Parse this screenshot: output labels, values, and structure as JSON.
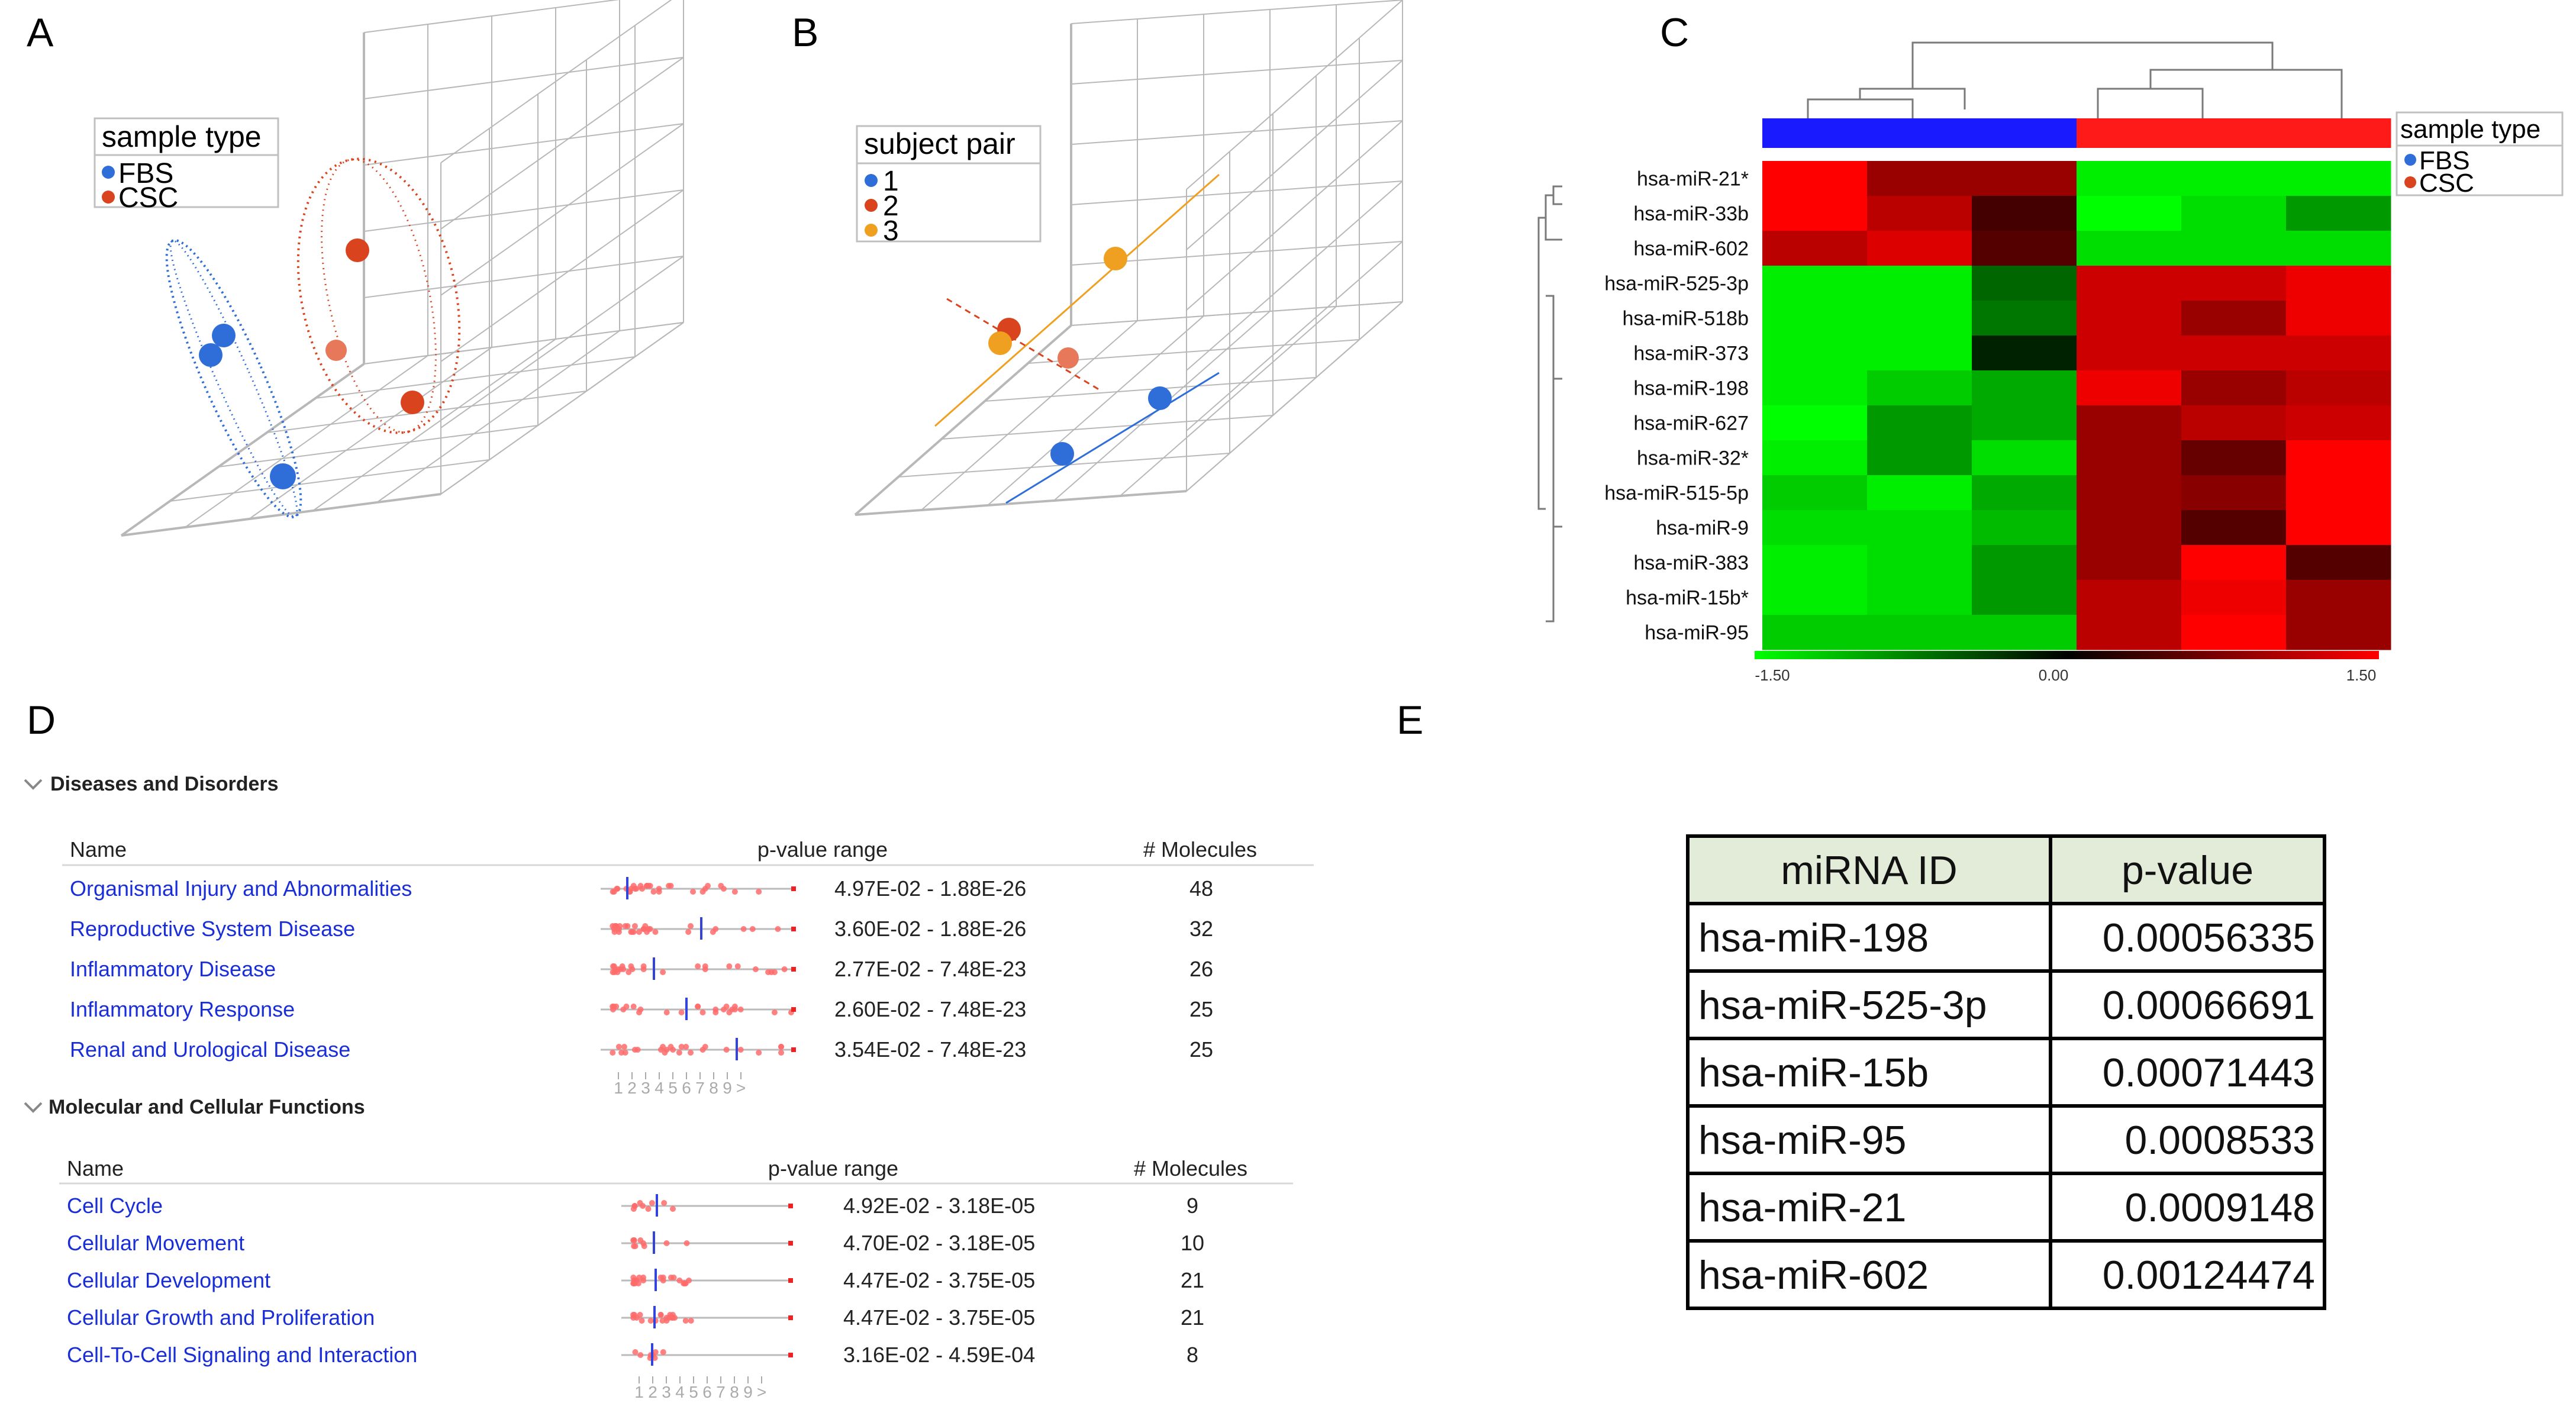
{
  "panel_labels": [
    "A",
    "B",
    "C",
    "D",
    "E"
  ],
  "colors": {
    "fbs": "#2f6ed8",
    "csc": "#d9441e",
    "subject1": "#2f6ed8",
    "subject2": "#d9441e",
    "subject3": "#f0a020",
    "heat_low": "#00ff00",
    "heat_mid": "#000000",
    "heat_high": "#ff0000",
    "link_blue": "#1a2ed8"
  },
  "panelA": {
    "legend_title": "sample type",
    "legend": [
      "FBS",
      "CSC"
    ]
  },
  "panelB": {
    "legend_title": "subject pair",
    "legend": [
      "1",
      "2",
      "3"
    ]
  },
  "panelC": {
    "legend_title": "sample type",
    "legend": [
      "FBS",
      "CSC"
    ],
    "scale_labels": [
      "-1.50",
      "0.00",
      "1.50"
    ]
  },
  "chart_data": [
    {
      "type": "heatmap",
      "rows": [
        "hsa-miR-21*",
        "hsa-miR-33b",
        "hsa-miR-602",
        "hsa-miR-525-3p",
        "hsa-miR-518b",
        "hsa-miR-373",
        "hsa-miR-198",
        "hsa-miR-627",
        "hsa-miR-32*",
        "hsa-miR-515-5p",
        "hsa-miR-9",
        "hsa-miR-383",
        "hsa-miR-15b*",
        "hsa-miR-95"
      ],
      "column_groups": [
        "FBS",
        "FBS",
        "FBS",
        "CSC",
        "CSC",
        "CSC"
      ],
      "values": [
        [
          1.5,
          0.9,
          0.9,
          -1.4,
          -1.4,
          -1.4
        ],
        [
          1.5,
          1.1,
          0.4,
          -1.5,
          -1.3,
          -0.9
        ],
        [
          1.1,
          1.3,
          0.5,
          -1.3,
          -1.3,
          -1.3
        ],
        [
          -1.4,
          -1.4,
          -0.6,
          1.2,
          1.2,
          1.4
        ],
        [
          -1.4,
          -1.4,
          -0.7,
          1.2,
          0.9,
          1.4
        ],
        [
          -1.4,
          -1.4,
          -0.2,
          1.2,
          1.2,
          1.2
        ],
        [
          -1.4,
          -1.2,
          -1.0,
          1.4,
          0.9,
          1.1
        ],
        [
          -1.5,
          -0.9,
          -1.0,
          0.9,
          1.1,
          1.2
        ],
        [
          -1.4,
          -0.9,
          -1.3,
          0.9,
          0.6,
          1.5
        ],
        [
          -1.2,
          -1.4,
          -1.0,
          0.9,
          0.8,
          1.5
        ],
        [
          -1.3,
          -1.3,
          -1.1,
          0.9,
          0.5,
          1.5
        ],
        [
          -1.4,
          -1.3,
          -0.9,
          0.9,
          1.5,
          0.5
        ],
        [
          -1.4,
          -1.3,
          -0.9,
          1.1,
          1.4,
          0.9
        ],
        [
          -1.2,
          -1.2,
          -1.2,
          1.1,
          1.5,
          0.9
        ]
      ],
      "color_scale": [
        -1.5,
        0.0,
        1.5
      ]
    },
    {
      "type": "table",
      "section": "Diseases and Disorders",
      "columns": [
        "Name",
        "p-value range",
        "# Molecules"
      ],
      "rows": [
        [
          "Organismal Injury and Abnormalities",
          "4.97E-02 - 1.88E-26",
          "48"
        ],
        [
          "Reproductive System Disease",
          "3.60E-02 - 1.88E-26",
          "32"
        ],
        [
          "Inflammatory Disease",
          "2.77E-02 - 7.48E-23",
          "26"
        ],
        [
          "Inflammatory Response",
          "2.60E-02 - 7.48E-23",
          "25"
        ],
        [
          "Renal and Urological Disease",
          "3.54E-02 - 7.48E-23",
          "25"
        ]
      ]
    },
    {
      "type": "table",
      "section": "Molecular and Cellular Functions",
      "columns": [
        "Name",
        "p-value range",
        "# Molecules"
      ],
      "rows": [
        [
          "Cell Cycle",
          "4.92E-02 - 3.18E-05",
          "9"
        ],
        [
          "Cellular Movement",
          "4.70E-02 - 3.18E-05",
          "10"
        ],
        [
          "Cellular Development",
          "4.47E-02 - 3.75E-05",
          "21"
        ],
        [
          "Cellular Growth and Proliferation",
          "4.47E-02 - 3.75E-05",
          "21"
        ],
        [
          "Cell-To-Cell Signaling and Interaction",
          "3.16E-02 - 4.59E-04",
          "8"
        ]
      ]
    },
    {
      "type": "table",
      "columns": [
        "miRNA ID",
        "p-value"
      ],
      "rows": [
        [
          "hsa-miR-198",
          "0.00056335"
        ],
        [
          "hsa-miR-525-3p",
          "0.00066691"
        ],
        [
          "hsa-miR-15b",
          "0.00071443"
        ],
        [
          "hsa-miR-95",
          "0.0008533"
        ],
        [
          "hsa-miR-21",
          "0.0009148"
        ],
        [
          "hsa-miR-602",
          "0.00124474"
        ]
      ]
    }
  ],
  "panelD": {
    "section1_title": "Diseases and Disorders",
    "section2_title": "Molecular and Cellular Functions",
    "col_name": "Name",
    "col_pvalue": "p-value range",
    "col_molecules": "# Molecules",
    "axis_ticks": [
      "1",
      "2",
      "3",
      "4",
      "5",
      "6",
      "7",
      "8",
      "9",
      ">"
    ]
  }
}
